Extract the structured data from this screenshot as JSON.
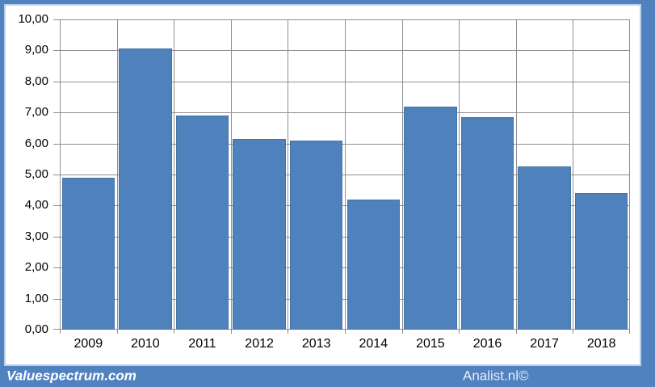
{
  "chart_data": {
    "type": "bar",
    "title": "",
    "xlabel": "",
    "ylabel": "",
    "categories": [
      "2009",
      "2010",
      "2011",
      "2012",
      "2013",
      "2014",
      "2015",
      "2016",
      "2017",
      "2018"
    ],
    "values": [
      4.9,
      9.05,
      6.9,
      6.15,
      6.1,
      4.2,
      7.2,
      6.85,
      5.25,
      4.4
    ],
    "ylim": [
      0,
      10
    ],
    "y_tick_step": 1,
    "y_tick_labels_top_to_bottom": [
      "10,00",
      "9,00",
      "8,00",
      "7,00",
      "6,00",
      "5,00",
      "4,00",
      "3,00",
      "2,00",
      "1,00",
      "0,00"
    ],
    "grid": "both",
    "legend": "none",
    "colors": {
      "bar_fill": "#4f81bd",
      "bar_border": "#4672a3",
      "gridline": "#8f8f8f",
      "frame": "#5182c0",
      "surface": "#ffffff"
    }
  },
  "footer": {
    "left_text": "Valuespectrum.com",
    "right_text": "Analist.nl©"
  }
}
